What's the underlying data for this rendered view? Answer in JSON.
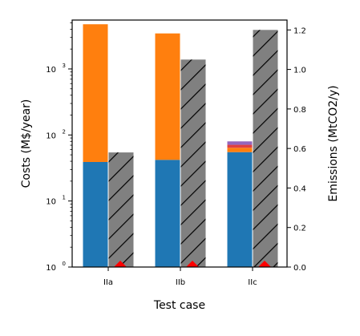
{
  "chart_data": {
    "type": "bar",
    "categories": [
      "IIa",
      "IIb",
      "IIc"
    ],
    "xlabel": "Test case",
    "ylabel_left": "Costs (M$/year)",
    "ylabel_right": "Emissions (MtCO2/y)",
    "left_axis": {
      "scale": "log",
      "ylim": [
        1,
        5500
      ],
      "major_ticks": [
        1,
        10,
        100,
        1000
      ],
      "major_tick_labels": [
        "10",
        "10",
        "10",
        "10"
      ],
      "major_tick_exponents": [
        "0",
        "1",
        "2",
        "3"
      ]
    },
    "right_axis": {
      "scale": "linear",
      "ylim": [
        0,
        1.25
      ],
      "ticks": [
        0.0,
        0.2,
        0.4,
        0.6,
        0.8,
        1.0,
        1.2
      ],
      "tick_labels": [
        "0.0",
        "0.2",
        "0.4",
        "0.6",
        "0.8",
        "1.0",
        "1.2"
      ]
    },
    "cost_series": [
      {
        "color": "#1f77b4",
        "values": [
          39,
          42,
          55
        ]
      },
      {
        "color": "#ff7f0e",
        "values": [
          4750,
          3450,
          64
        ]
      },
      {
        "color": "#e04040",
        "values": [
          0,
          0,
          71
        ]
      },
      {
        "color": "#9467bd",
        "values": [
          0,
          0,
          80
        ]
      }
    ],
    "emissions_series": {
      "color": "#808080",
      "hatch": "diagonal",
      "values": [
        0.58,
        1.05,
        1.2
      ]
    },
    "emission_markers": {
      "color": "#ff0000",
      "shape": "diamond",
      "values": [
        0.0,
        0.0,
        0.0
      ]
    },
    "grid": false
  }
}
